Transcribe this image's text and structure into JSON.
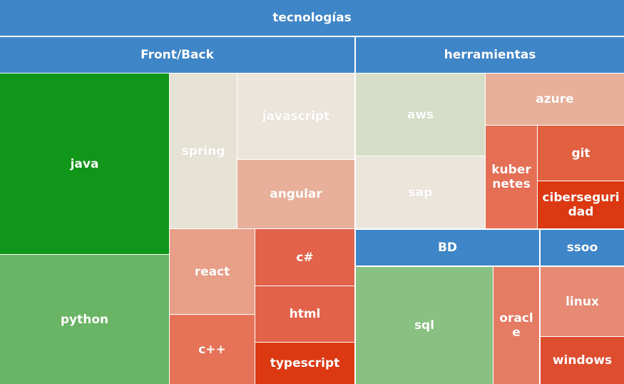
{
  "title": "tecnologías",
  "groups": [
    {
      "label": "Front/Back",
      "items": [
        "java",
        "python",
        "spring",
        "javascript",
        "angular",
        "react",
        "c++",
        "c#",
        "html",
        "typescript"
      ]
    },
    {
      "label": "herramientas",
      "items": [
        "aws",
        "sap",
        "azure",
        "kubernetes",
        "git",
        "ciberseguridad"
      ],
      "subgroups": [
        {
          "label": "BD",
          "items": [
            "sql",
            "oracle"
          ]
        },
        {
          "label": "ssoo",
          "items": [
            "linux",
            "windows"
          ]
        }
      ]
    }
  ]
}
